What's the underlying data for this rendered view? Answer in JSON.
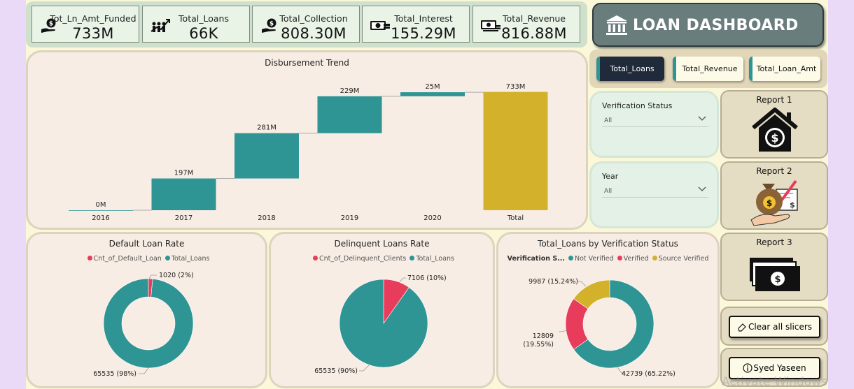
{
  "kpis": [
    {
      "label": "Tot_Ln_Amt_Funded",
      "value": "733M",
      "icon": "hand-dollar-icon"
    },
    {
      "label": "Total_Loans",
      "value": "66K",
      "icon": "people-growth-icon"
    },
    {
      "label": "Total_Collection",
      "value": "808.30M",
      "icon": "hand-dollar-icon"
    },
    {
      "label": "Total_Interest",
      "value": "155.29M",
      "icon": "cash-icon"
    },
    {
      "label": "Total_Revenue",
      "value": "816.88M",
      "icon": "cash-stack-icon"
    }
  ],
  "header": {
    "title": "LOAN DASHBOARD",
    "icon": "bank-icon"
  },
  "nav": {
    "buttons": [
      {
        "label": "Total_Loans",
        "active": true
      },
      {
        "label": "Total_Revenue",
        "active": false
      },
      {
        "label": "Total_Loan_Amt",
        "active": false
      }
    ]
  },
  "slicers": [
    {
      "title": "Verification Status",
      "value": "All"
    },
    {
      "title": "Year",
      "value": "All"
    }
  ],
  "reports": [
    {
      "label": "Report 1",
      "icon": "house-dollar-icon"
    },
    {
      "label": "Report 2",
      "icon": "money-bag-icon"
    },
    {
      "label": "Report 3",
      "icon": "cash-stack-icon"
    }
  ],
  "actions": {
    "clear": "Clear all slicers",
    "author": "Syed Yaseen"
  },
  "watermark": "Activate Windows",
  "colors": {
    "teal": "#2e9494",
    "red": "#e83c5c",
    "gold": "#d4b12a",
    "slate": "#6a7d7d"
  },
  "chart_data": [
    {
      "type": "waterfall",
      "title": "Disbursement Trend",
      "categories": [
        "2016",
        "2017",
        "2018",
        "2019",
        "2020",
        "Total"
      ],
      "values": [
        0,
        197,
        281,
        229,
        25,
        733
      ],
      "value_labels": [
        "0M",
        "197M",
        "281M",
        "229M",
        "25M",
        "733M"
      ],
      "ylim": [
        0,
        780
      ]
    },
    {
      "type": "donut",
      "title": "Default Loan Rate",
      "legend": [
        "Cnt_of_Default_Loan",
        "Total_Loans"
      ],
      "slices": [
        {
          "name": "Cnt_of_Default_Loan",
          "value": 1020,
          "label": "1020 (2%)"
        },
        {
          "name": "Total_Loans",
          "value": 65535,
          "label": "65535 (98%)"
        }
      ]
    },
    {
      "type": "pie",
      "title": "Delinquent Loans Rate",
      "legend": [
        "Cnt_of_Delinquent_Clients",
        "Total_Loans"
      ],
      "slices": [
        {
          "name": "Cnt_of_Delinquent_Clients",
          "value": 7106,
          "label": "7106 (10%)"
        },
        {
          "name": "Total_Loans",
          "value": 65535,
          "label": "65535 (90%)"
        }
      ]
    },
    {
      "type": "donut",
      "title": "Total_Loans by Verification Status",
      "legend_title": "Verification S...",
      "legend": [
        "Not Verified",
        "Verified",
        "Source Verified"
      ],
      "slices": [
        {
          "name": "Not Verified",
          "value": 42739,
          "label": "42739 (65.22%)"
        },
        {
          "name": "Verified",
          "value": 12809,
          "label": "12809 (19.55%)"
        },
        {
          "name": "Source Verified",
          "value": 9987,
          "label": "9987 (15.24%)"
        }
      ]
    }
  ]
}
